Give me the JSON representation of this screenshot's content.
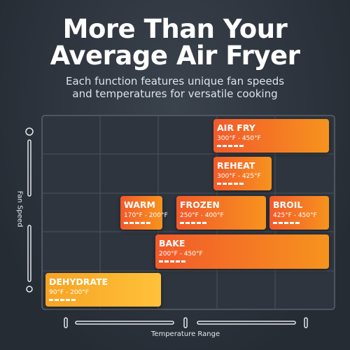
{
  "header": {
    "title": [
      "More Than Your",
      "Average Air Fryer"
    ],
    "subtitle": [
      "Each function features unique fan speeds",
      "and temperatures for versatile cooking"
    ]
  },
  "axes": {
    "y_label": "Fan Speed",
    "x_label": "Temperature Range"
  },
  "functions": [
    {
      "name": "AIR FRY",
      "range": "300°F - 450°F"
    },
    {
      "name": "REHEAT",
      "range": "300°F - 425°F"
    },
    {
      "name": "WARM",
      "range": "170°F - 200°F"
    },
    {
      "name": "FROZEN",
      "range": "250°F - 400°F"
    },
    {
      "name": "BROIL",
      "range": "425°F - 450°F"
    },
    {
      "name": "BAKE",
      "range": "200°F - 450°F"
    },
    {
      "name": "DEHYDRATE",
      "range": "90°F - 200°F"
    }
  ]
}
